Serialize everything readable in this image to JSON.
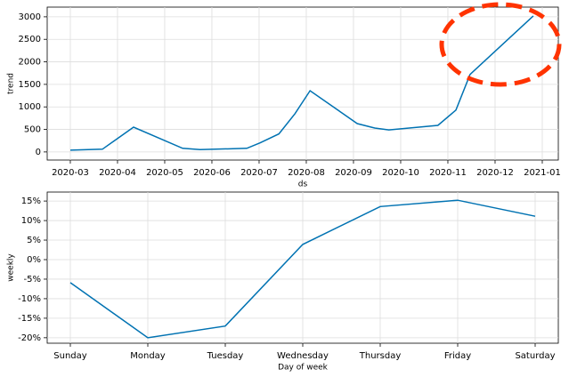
{
  "chart_data": [
    {
      "type": "line",
      "y_label": "trend",
      "x_label": "ds",
      "grid": true,
      "x": [
        3.0,
        3.68,
        4.34,
        5.38,
        5.75,
        6.74,
        7.02,
        7.42,
        7.76,
        8.08,
        9.08,
        9.45,
        9.75,
        10.79,
        11.17,
        11.47,
        12.81
      ],
      "values": [
        40,
        60,
        550,
        80,
        50,
        80,
        200,
        400,
        850,
        1360,
        630,
        530,
        490,
        590,
        930,
        1720,
        3020
      ],
      "color": "#0072b2",
      "xlim": [
        2.51,
        13.34
      ],
      "ylim": [
        -180,
        3215
      ],
      "xticks": [
        {
          "value": 3,
          "label": "2020-03"
        },
        {
          "value": 4,
          "label": "2020-04"
        },
        {
          "value": 5,
          "label": "2020-05"
        },
        {
          "value": 6,
          "label": "2020-06"
        },
        {
          "value": 7,
          "label": "2020-07"
        },
        {
          "value": 8,
          "label": "2020-08"
        },
        {
          "value": 9,
          "label": "2020-09"
        },
        {
          "value": 10,
          "label": "2020-10"
        },
        {
          "value": 11,
          "label": "2020-11"
        },
        {
          "value": 12,
          "label": "2020-12"
        },
        {
          "value": 13,
          "label": "2021-01"
        }
      ],
      "yticks": [
        0,
        500,
        1000,
        1500,
        2000,
        2500,
        3000
      ]
    },
    {
      "type": "line",
      "y_label": "weekly",
      "x_label": "Day of week",
      "grid": true,
      "categories": [
        "Sunday",
        "Monday",
        "Tuesday",
        "Wednesday",
        "Thursday",
        "Friday",
        "Saturday"
      ],
      "values": [
        -5.9,
        -20,
        -17,
        3.9,
        13.6,
        15.2,
        11.1
      ],
      "color": "#0072b2",
      "ylim": [
        -21.4,
        17.3
      ],
      "yticks": [
        {
          "value": -20,
          "label": "-20%"
        },
        {
          "value": -15,
          "label": "-15%"
        },
        {
          "value": -10,
          "label": "-10%"
        },
        {
          "value": -5,
          "label": "-5%"
        },
        {
          "value": 0,
          "label": "0%"
        },
        {
          "value": 5,
          "label": "5%"
        },
        {
          "value": 10,
          "label": "10%"
        },
        {
          "value": 15,
          "label": "15%"
        }
      ]
    }
  ]
}
